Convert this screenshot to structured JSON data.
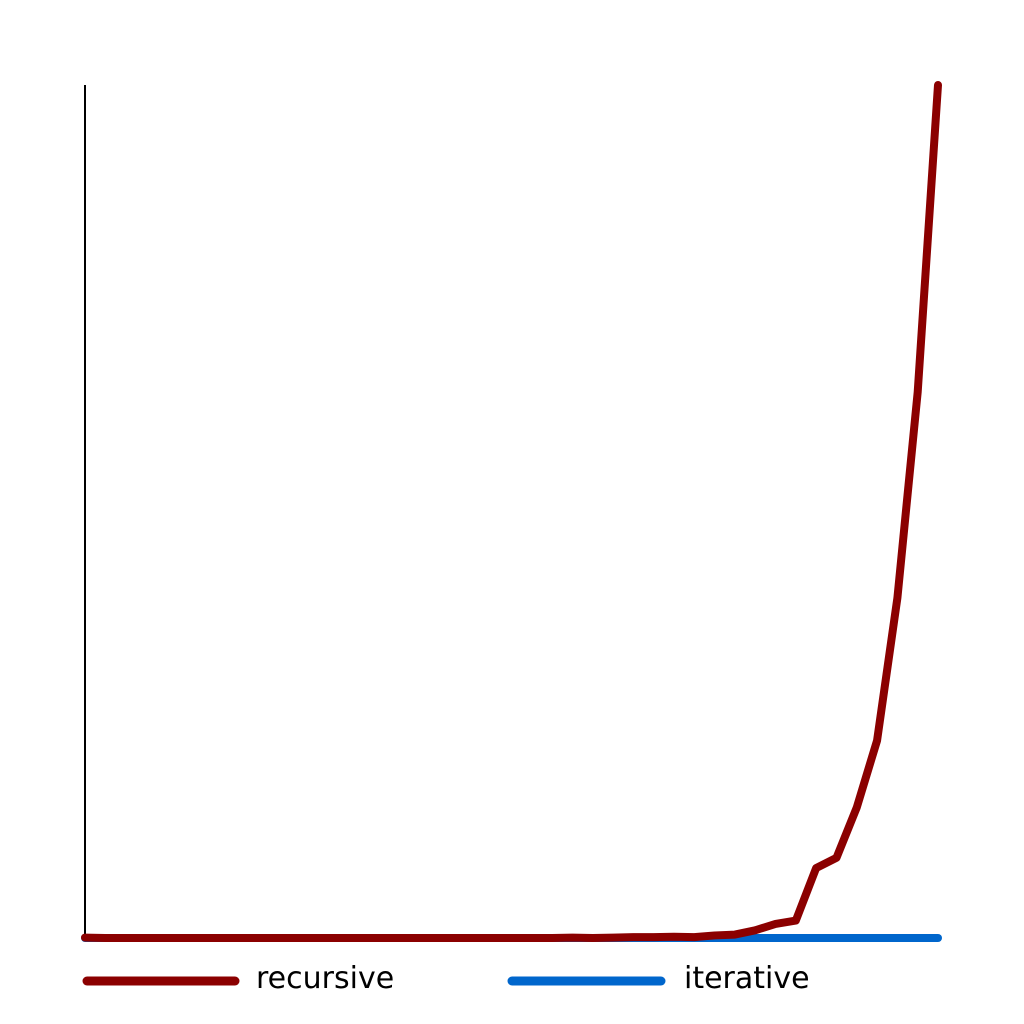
{
  "chart_data": {
    "type": "line",
    "title": "",
    "xlabel": "",
    "ylabel": "",
    "x": [
      0,
      1,
      2,
      3,
      4,
      5,
      6,
      7,
      8,
      9,
      10,
      11,
      12,
      13,
      14,
      15,
      16,
      17,
      18,
      19,
      20,
      21,
      22,
      23,
      24,
      25,
      26,
      27,
      28,
      29,
      30,
      31,
      32,
      33,
      34,
      35,
      36,
      37,
      38,
      39,
      40,
      41,
      42
    ],
    "xlim": [
      0,
      42
    ],
    "ylim": [
      0,
      1.0
    ],
    "grid": false,
    "legend_position": "bottom",
    "series": [
      {
        "name": "recursive",
        "color": "#8b0000",
        "values": [
          0.0005,
          0,
          0,
          0,
          0,
          0,
          0,
          0,
          0,
          0,
          0,
          0,
          0,
          0,
          0,
          0,
          0,
          0,
          0,
          0,
          0,
          0,
          0,
          0,
          0.0005,
          0,
          0.0005,
          0.001,
          0.001,
          0.0015,
          0.001,
          0.003,
          0.004,
          0.009,
          0.0165,
          0.0205,
          0.082,
          0.094,
          0.153,
          0.2315,
          0.3985,
          0.64,
          1.0
        ]
      },
      {
        "name": "iterative",
        "color": "#0066cc",
        "values": [
          0,
          0,
          0,
          0,
          0,
          0,
          0,
          0,
          0,
          0,
          0,
          0,
          0,
          0,
          0,
          0,
          0,
          0,
          0,
          0,
          0,
          0,
          0,
          0,
          0,
          0,
          0,
          0,
          0,
          0,
          0,
          0,
          0,
          0,
          0,
          0,
          0,
          0,
          0,
          0,
          0,
          0,
          0
        ]
      }
    ]
  }
}
